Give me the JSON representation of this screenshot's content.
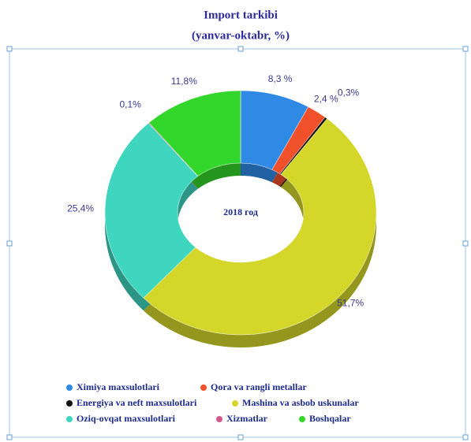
{
  "chart_data": {
    "type": "donut",
    "title": "Import tarkibi",
    "subtitle": "(yanvar-oktabr, %)",
    "center_label": "2018 год",
    "categories": [
      "Ximiya maxsulotlari",
      "Qora va rangli metallar",
      "Energiya va neft maxsulotlari",
      "Mashina va asbob uskunalar",
      "Oziq-ovqat maxsulotlari",
      "Xizmatlar",
      "Boshqalar"
    ],
    "values": [
      8.3,
      2.4,
      0.3,
      51.7,
      25.4,
      0.1,
      11.8
    ],
    "value_labels": [
      "8,3 %",
      "2,4 %",
      "0,3%",
      "51,7%",
      "25,4%",
      "0,1%",
      "11,8%"
    ],
    "colors": [
      "#2f8ae6",
      "#f0502a",
      "#111111",
      "#d4d62a",
      "#3fd6c0",
      "#d05a8a",
      "#33d62a"
    ],
    "legend": "bottom"
  }
}
